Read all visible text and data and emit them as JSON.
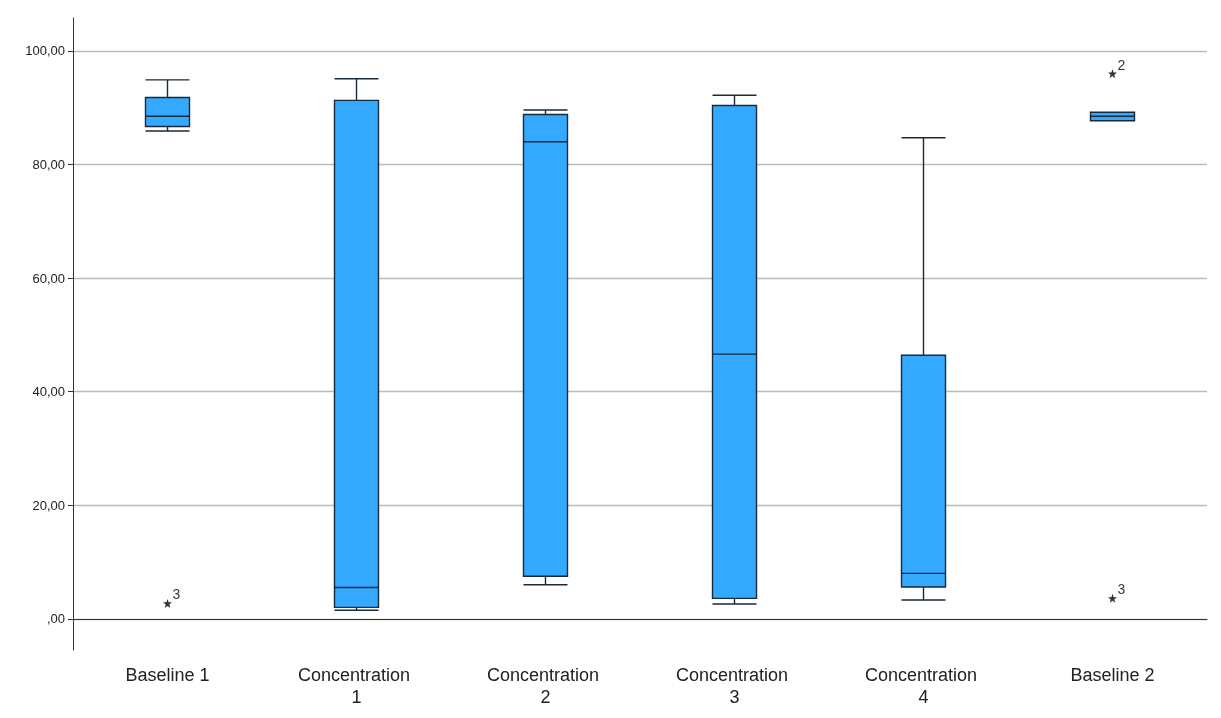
{
  "chart_data": {
    "type": "box",
    "categories": [
      "Baseline 1",
      "Concentration 1",
      "Concentration 2",
      "Concentration 3",
      "Concentration 4",
      "Baseline 2"
    ],
    "boxes": [
      {
        "low": 85.9,
        "q1": 86.7,
        "median": 88.5,
        "q3": 91.8,
        "high": 94.9,
        "outliers": [
          2.7
        ]
      },
      {
        "low": 1.5,
        "q1": 2.0,
        "median": 5.5,
        "q3": 91.3,
        "high": 95.1
      },
      {
        "low": 6.0,
        "q1": 7.5,
        "median": 84.0,
        "q3": 88.8,
        "high": 89.6
      },
      {
        "low": 2.6,
        "q1": 3.6,
        "median": 46.6,
        "q3": 90.4,
        "high": 92.2
      },
      {
        "low": 3.3,
        "q1": 5.6,
        "median": 8.0,
        "q3": 46.4,
        "high": 84.7
      },
      {
        "low": 87.7,
        "q1": 87.7,
        "median": 88.5,
        "q3": 89.2,
        "high": 89.2,
        "outliers": [
          96.0,
          3.6
        ]
      }
    ],
    "color": "#33aaff",
    "marker": "star",
    "grid": "y",
    "ylim": [
      -5.5,
      105.8
    ],
    "yticks": [
      {
        "value": 0,
        "label": ",00"
      },
      {
        "value": 20,
        "label": "20,00"
      },
      {
        "value": 40,
        "label": "40,00"
      },
      {
        "value": 60,
        "label": "60,00"
      },
      {
        "value": 80,
        "label": "80,00"
      },
      {
        "value": 100,
        "label": "100,00"
      }
    ],
    "annotations": [
      "3",
      "2",
      "3"
    ]
  }
}
